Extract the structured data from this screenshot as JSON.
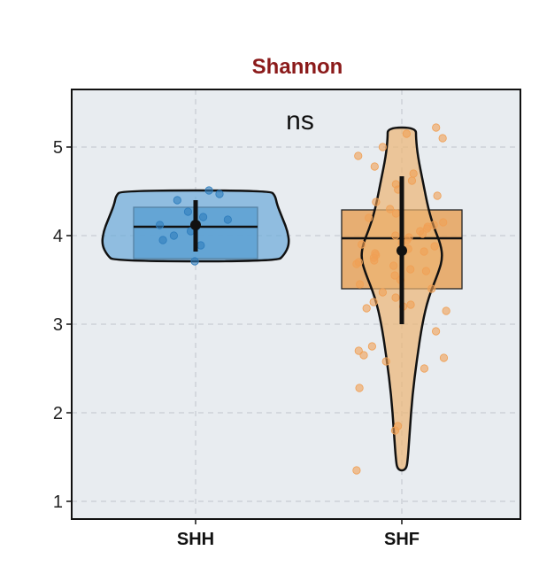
{
  "chart_data": {
    "type": "violin",
    "title": "Shannon",
    "annotation": "ns",
    "categories": [
      "SHH",
      "SHF"
    ],
    "ylim": [
      0.8,
      5.65
    ],
    "yticks": [
      1,
      2,
      3,
      4,
      5
    ],
    "ytick_labels": [
      "1",
      "2",
      "3",
      "4",
      "5"
    ],
    "grid": true,
    "colors": {
      "title": "#8B1A1A",
      "panel_bg": "#E8ECF0",
      "grid": "#BFC5CC",
      "SHH_fill": "#3C8CC8",
      "SHH_violin": "#6BAAD9",
      "SHH_point": "#2E7DBD",
      "SHF_fill": "#E6A35C",
      "SHF_violin": "#EDB574",
      "SHF_point": "#F0A055"
    },
    "series": [
      {
        "name": "SHH",
        "box": {
          "q1": 3.74,
          "median": 4.1,
          "q3": 4.32
        },
        "mean": 4.12,
        "error_bar": [
          3.82,
          4.4
        ],
        "violin_range": [
          3.71,
          4.51
        ],
        "points": [
          3.71,
          3.89,
          3.95,
          4.0,
          4.05,
          4.1,
          4.12,
          4.18,
          4.21,
          4.27,
          4.4,
          4.47,
          4.51
        ]
      },
      {
        "name": "SHF",
        "box": {
          "q1": 3.4,
          "median": 3.97,
          "q3": 4.29
        },
        "mean": 3.83,
        "error_bar": [
          3.0,
          4.67
        ],
        "violin_range": [
          1.35,
          5.22
        ],
        "points": [
          1.35,
          1.8,
          1.85,
          2.28,
          2.5,
          2.58,
          2.62,
          2.65,
          2.7,
          2.75,
          2.92,
          3.15,
          3.18,
          3.2,
          3.22,
          3.25,
          3.3,
          3.36,
          3.4,
          3.45,
          3.5,
          3.55,
          3.6,
          3.62,
          3.66,
          3.68,
          3.7,
          3.72,
          3.75,
          3.78,
          3.8,
          3.82,
          3.85,
          3.88,
          3.9,
          3.92,
          3.95,
          3.98,
          4.0,
          4.02,
          4.05,
          4.08,
          4.1,
          4.12,
          4.15,
          4.2,
          4.25,
          4.3,
          4.38,
          4.45,
          4.52,
          4.58,
          4.62,
          4.7,
          4.78,
          4.9,
          5.0,
          5.1,
          5.15,
          5.22
        ]
      }
    ]
  }
}
